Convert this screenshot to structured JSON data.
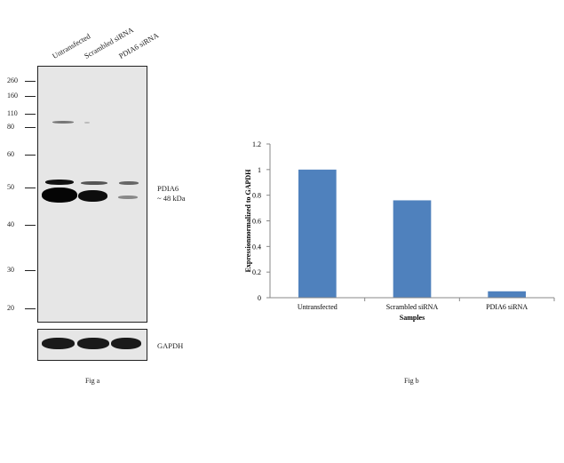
{
  "fig_a": {
    "lanes": [
      "Untransfected",
      "Scrambled siRNA",
      "PDIA6 siRNA"
    ],
    "markers": [
      "260",
      "160",
      "110",
      "80",
      "60",
      "50",
      "40",
      "30",
      "20"
    ],
    "band_label": "PDIA6",
    "band_size": "~ 48 kDa",
    "loading_control": "GAPDH",
    "caption": "Fig a"
  },
  "fig_b": {
    "caption": "Fig b"
  },
  "chart_data": {
    "type": "bar",
    "categories": [
      "Untransfected",
      "Scrambled siRNA",
      "PDIA6 siRNA"
    ],
    "values": [
      1.0,
      0.76,
      0.05
    ],
    "title": "",
    "xlabel": "Samples",
    "ylabel": "Expressionnormalized to GAPDH",
    "ylim": [
      0,
      1.2
    ],
    "yticks": [
      "0",
      "0.2",
      "0.4",
      "0.6",
      "0.8",
      "1",
      "1.2"
    ],
    "grid": false,
    "bar_color": "#4f81bd"
  }
}
